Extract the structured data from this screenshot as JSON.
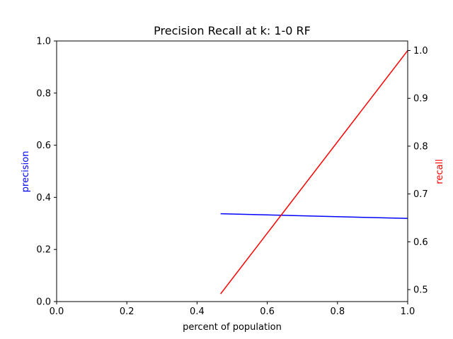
{
  "chart_data": {
    "type": "line",
    "title": "Precision Recall at k: 1-0 RF",
    "xlabel": "percent of population",
    "ylabel_left": "precision",
    "ylabel_right": "recall",
    "xlim": [
      0.0,
      1.0
    ],
    "ylim_left": [
      0.0,
      1.0
    ],
    "ylim_right": [
      0.475,
      1.02
    ],
    "x_ticks": [
      "0.0",
      "0.2",
      "0.4",
      "0.6",
      "0.8",
      "1.0"
    ],
    "y_left_ticks": [
      "0.0",
      "0.2",
      "0.4",
      "0.6",
      "0.8",
      "1.0"
    ],
    "y_right_ticks": [
      "0.5",
      "0.6",
      "0.7",
      "0.8",
      "0.9",
      "1.0"
    ],
    "grid": false,
    "series": [
      {
        "axis": "left",
        "color": "#0000ff",
        "x": [
          0.467,
          1.0
        ],
        "y": [
          0.337,
          0.319
        ]
      },
      {
        "axis": "right",
        "color": "#ff0000",
        "x": [
          0.467,
          1.0
        ],
        "y": [
          0.491,
          1.0
        ]
      }
    ],
    "colors": {
      "precision_label": "#0000ff",
      "recall_label": "#ff0000"
    }
  }
}
